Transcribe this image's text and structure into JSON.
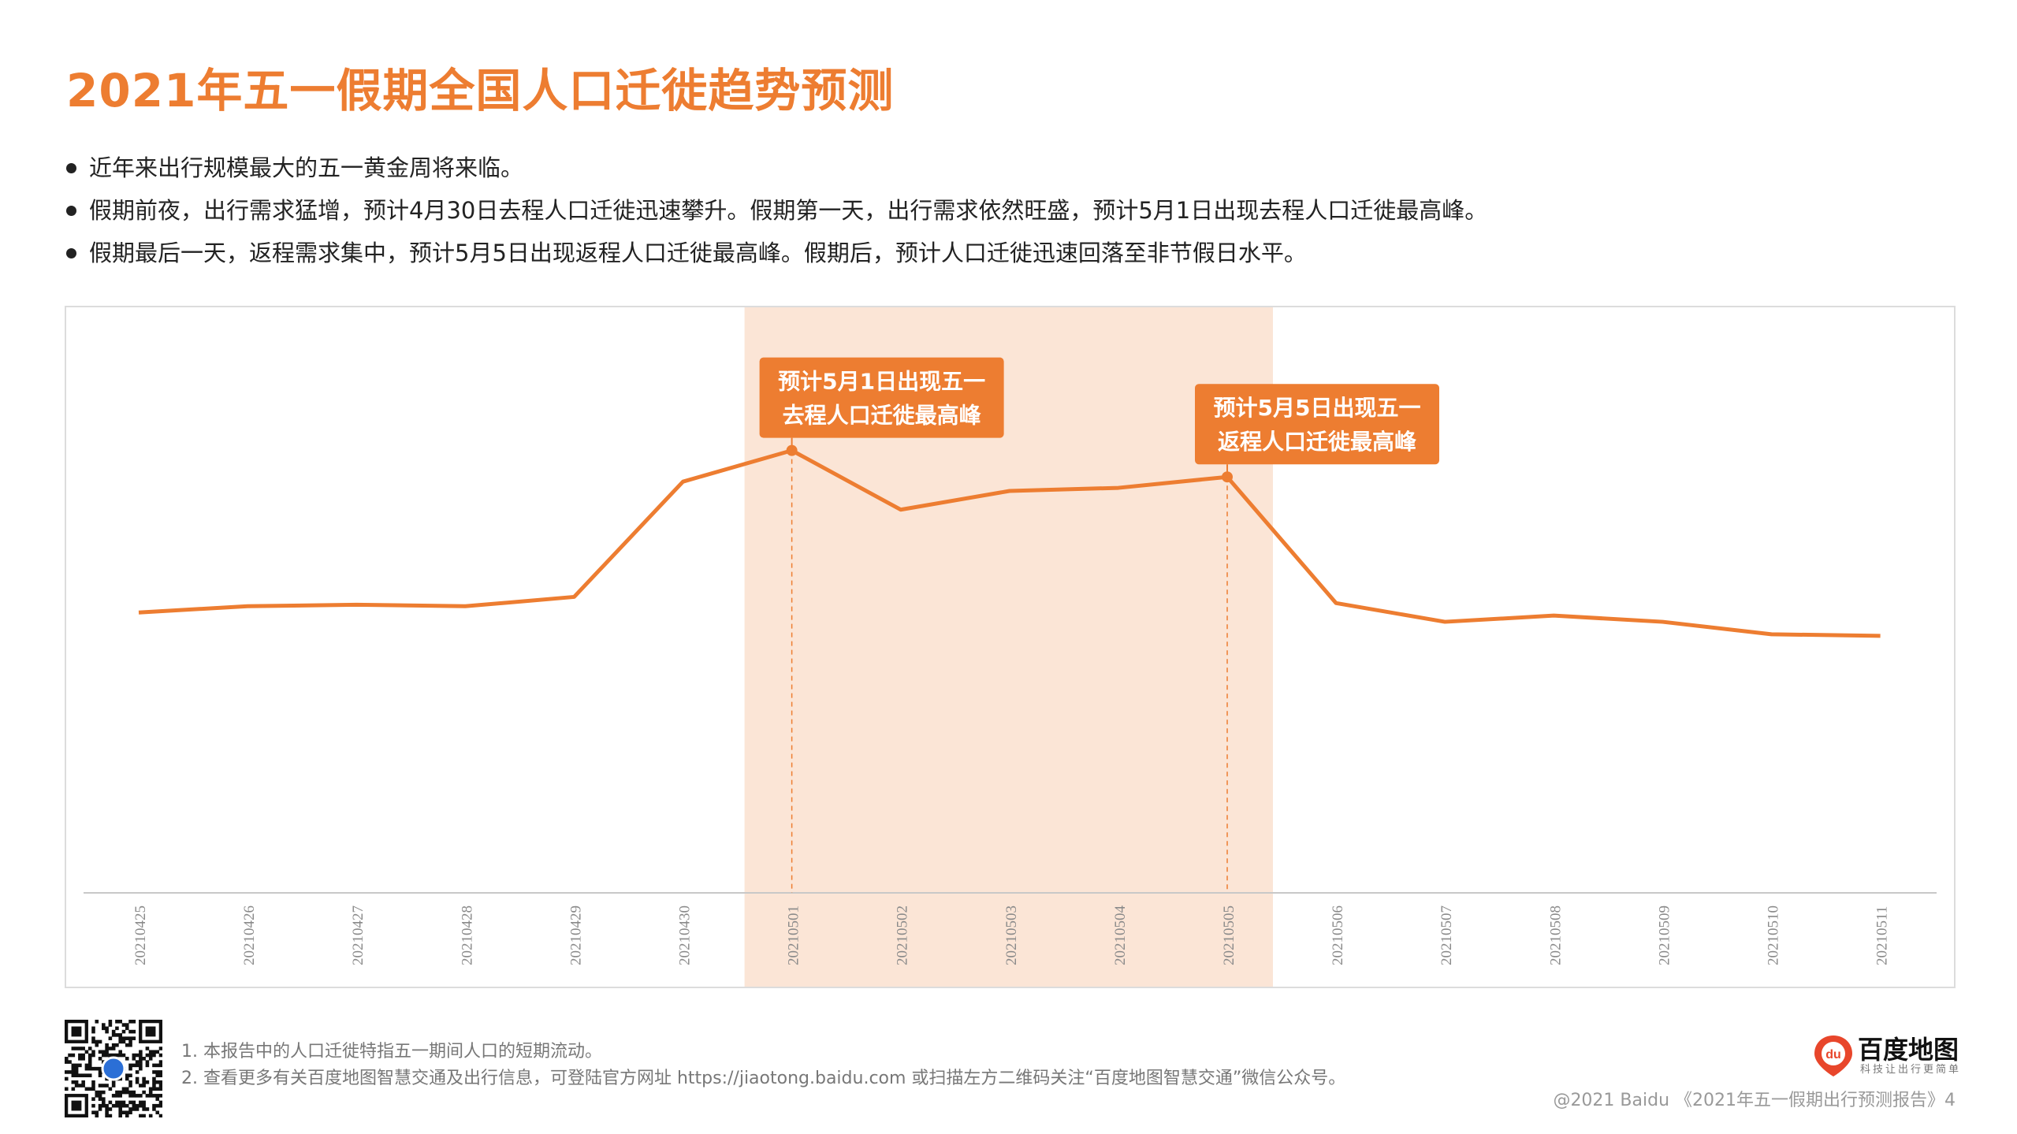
{
  "title": "2021年五一假期全国人口迁徙趋势预测",
  "bullets": [
    "近年来出行规模最大的五一黄金周将来临。",
    "假期前夜，出行需求猛增，预计4月30日去程人口迁徙迅速攀升。假期第一天，出行需求依然旺盛，预计5月1日出现去程人口迁徙最高峰。",
    "假期最后一天，返程需求集中，预计5月5日出现返程人口迁徙最高峰。假期后，预计人口迁徙迅速回落至非节假日水平。"
  ],
  "chart_data": {
    "type": "line",
    "x": [
      "20210425",
      "20210426",
      "20210427",
      "20210428",
      "20210429",
      "20210430",
      "20210501",
      "20210502",
      "20210503",
      "20210504",
      "20210505",
      "20210506",
      "20210507",
      "20210508",
      "20210509",
      "20210510",
      "20210511"
    ],
    "series": [
      {
        "values": [
          0.4,
          0.42,
          0.425,
          0.42,
          0.45,
          0.82,
          0.92,
          0.73,
          0.79,
          0.8,
          0.835,
          0.43,
          0.37,
          0.39,
          0.37,
          0.33,
          0.325
        ]
      }
    ],
    "ylim": [
      -0.5,
      1.0
    ],
    "y_axis_shown": false,
    "highlight_range": [
      "20210501",
      "20210505"
    ],
    "annotations": [
      {
        "x": "20210501",
        "lines": [
          "预计5月1日出现五一",
          "去程人口迁徙最高峰"
        ]
      },
      {
        "x": "20210505",
        "lines": [
          "预计5月5日出现五一",
          "返程人口迁徙最高峰"
        ]
      }
    ],
    "colors": {
      "line": "#ed7d31",
      "highlight": "#fbe5d6",
      "callout": "#ed7d31"
    }
  },
  "footer": {
    "note1": "1.   本报告中的人口迁徙特指五一期间人口的短期流动。",
    "note2": "2.   查看更多有关百度地图智慧交通及出行信息，可登陆官方网址 https://jiaotong.baidu.com 或扫描左方二维码关注“百度地图智慧交通”微信公众号。",
    "copyright": "@2021 Baidu 《2021年五一假期出行预测报告》4"
  },
  "logo": {
    "text": "百度地图",
    "sub": "科技让出行更简单",
    "badge": "du"
  }
}
